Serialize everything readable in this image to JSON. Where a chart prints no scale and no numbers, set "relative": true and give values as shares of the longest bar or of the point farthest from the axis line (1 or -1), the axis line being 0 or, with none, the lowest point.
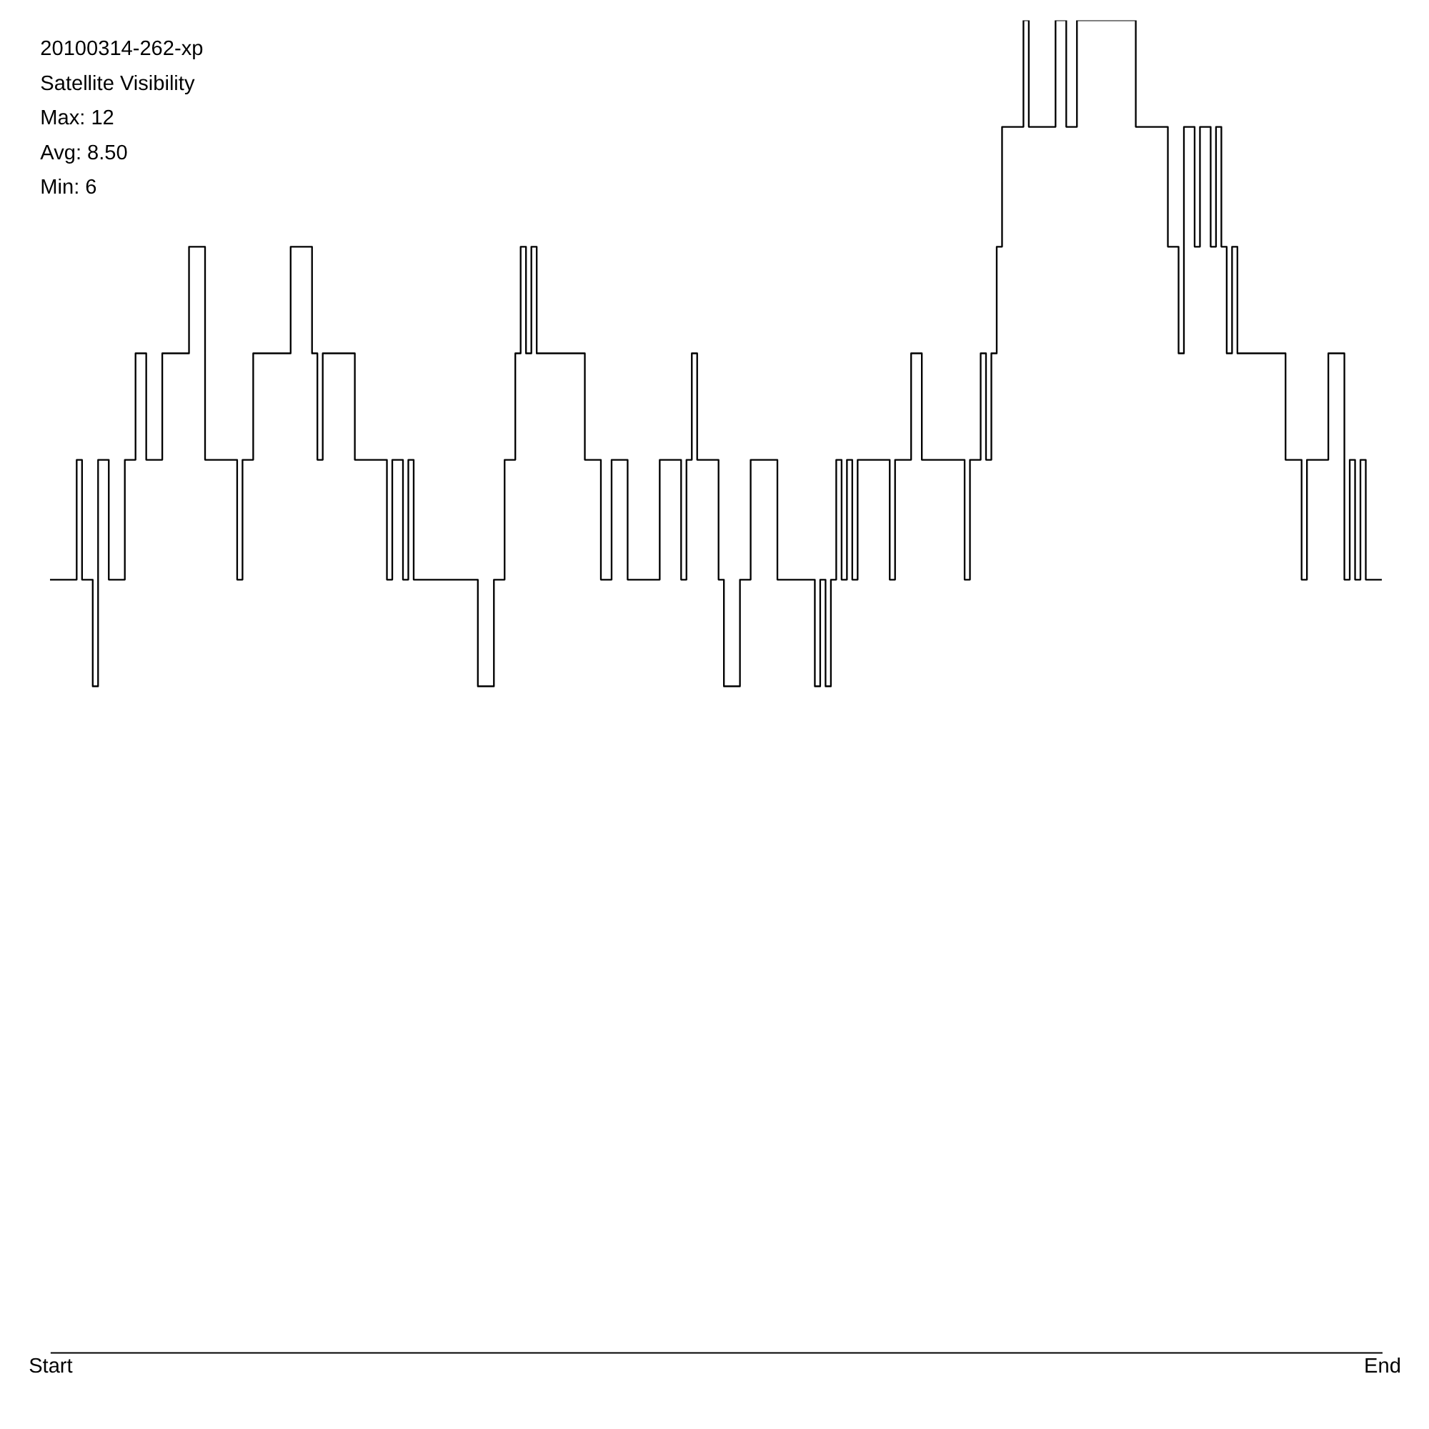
{
  "chart_data": {
    "type": "step",
    "title": "20100314-262-xp",
    "subtitle": "Satellite Visibility",
    "annotations": [
      "Max: 12",
      "Avg: 8.50",
      "Min: 6"
    ],
    "categories": [
      "Start",
      null,
      null,
      null,
      null,
      null,
      null,
      null,
      null,
      null,
      null,
      null,
      null,
      null,
      null,
      null,
      null,
      null,
      null,
      null,
      null,
      null,
      null,
      null,
      null,
      null,
      null,
      null,
      null,
      null,
      null,
      null,
      null,
      null,
      null,
      null,
      null,
      null,
      null,
      null,
      null,
      null,
      null,
      null,
      null,
      null,
      null,
      null,
      null,
      null,
      null,
      null,
      null,
      null,
      null,
      null,
      null,
      null,
      null,
      null,
      null,
      null,
      null,
      null,
      null,
      null,
      null,
      null,
      null,
      null,
      null,
      null,
      null,
      null,
      null,
      null,
      null,
      null,
      null,
      null,
      null,
      null,
      null,
      null,
      null,
      null,
      null,
      null,
      null,
      null,
      null,
      null,
      null,
      null,
      null,
      null,
      null,
      null,
      null,
      null,
      null,
      null,
      null,
      null,
      null,
      null,
      null,
      null,
      null,
      null,
      null,
      null,
      null,
      null,
      null,
      null,
      null,
      null,
      null,
      null,
      null,
      null,
      null,
      null,
      null,
      null,
      null,
      null,
      null,
      null,
      null,
      null,
      null,
      null,
      null,
      null,
      null,
      null,
      null,
      null,
      null,
      null,
      null,
      null,
      null,
      null,
      null,
      null,
      null,
      null,
      null,
      null,
      null,
      null,
      null,
      null,
      null,
      null,
      null,
      null,
      null,
      null,
      null,
      null,
      null,
      null,
      null,
      null,
      null,
      null,
      null,
      null,
      null,
      null,
      null,
      null,
      null,
      null,
      null,
      null,
      null,
      null,
      null,
      null,
      null,
      null,
      null,
      null,
      null,
      null,
      null,
      null,
      null,
      null,
      null,
      null,
      null,
      null,
      null,
      null,
      null,
      null,
      null,
      null,
      null,
      null,
      null,
      null,
      null,
      null,
      null,
      null,
      null,
      null,
      null,
      null,
      null,
      null,
      null,
      null,
      null,
      null,
      null,
      null,
      null,
      null,
      null,
      null,
      null,
      null,
      null,
      null,
      null,
      null,
      null,
      null,
      null,
      null,
      null,
      null,
      null,
      null,
      null,
      null,
      null,
      null,
      null,
      null,
      null,
      "End"
    ],
    "values": [
      0.58,
      0.58,
      0.58,
      0.58,
      0.58,
      0.67,
      0.58,
      0.58,
      0.5,
      0.67,
      0.67,
      0.58,
      0.58,
      0.58,
      0.67,
      0.67,
      0.75,
      0.75,
      0.67,
      0.67,
      0.67,
      0.75,
      0.75,
      0.75,
      0.75,
      0.75,
      0.83,
      0.83,
      0.83,
      0.67,
      0.67,
      0.67,
      0.67,
      0.67,
      0.67,
      0.58,
      0.67,
      0.67,
      0.75,
      0.75,
      0.75,
      0.75,
      0.75,
      0.75,
      0.75,
      0.83,
      0.83,
      0.83,
      0.83,
      0.75,
      0.67,
      0.75,
      0.75,
      0.75,
      0.75,
      0.75,
      0.75,
      0.67,
      0.67,
      0.67,
      0.67,
      0.67,
      0.67,
      0.58,
      0.67,
      0.67,
      0.58,
      0.67,
      0.58,
      0.58,
      0.58,
      0.58,
      0.58,
      0.58,
      0.58,
      0.58,
      0.58,
      0.58,
      0.58,
      0.58,
      0.5,
      0.5,
      0.5,
      0.58,
      0.58,
      0.67,
      0.67,
      0.75,
      0.83,
      0.75,
      0.83,
      0.75,
      0.75,
      0.75,
      0.75,
      0.75,
      0.75,
      0.75,
      0.75,
      0.75,
      0.67,
      0.67,
      0.67,
      0.58,
      0.58,
      0.67,
      0.67,
      0.67,
      0.58,
      0.58,
      0.58,
      0.58,
      0.58,
      0.58,
      0.67,
      0.67,
      0.67,
      0.67,
      0.58,
      0.67,
      0.75,
      0.67,
      0.67,
      0.67,
      0.67,
      0.58,
      0.5,
      0.5,
      0.5,
      0.58,
      0.58,
      0.67,
      0.67,
      0.67,
      0.67,
      0.67,
      0.58,
      0.58,
      0.58,
      0.58,
      0.58,
      0.58,
      0.58,
      0.5,
      0.58,
      0.5,
      0.58,
      0.67,
      0.58,
      0.67,
      0.58,
      0.67,
      0.67,
      0.67,
      0.67,
      0.67,
      0.67,
      0.58,
      0.67,
      0.67,
      0.67,
      0.75,
      0.75,
      0.67,
      0.67,
      0.67,
      0.67,
      0.67,
      0.67,
      0.67,
      0.67,
      0.58,
      0.67,
      0.67,
      0.75,
      0.67,
      0.75,
      0.83,
      0.92,
      0.92,
      0.92,
      0.92,
      1,
      0.92,
      0.92,
      0.92,
      0.92,
      0.92,
      1,
      1,
      0.92,
      0.92,
      1,
      1,
      1,
      1,
      1,
      1,
      1,
      1,
      1,
      1,
      1,
      0.92,
      0.92,
      0.92,
      0.92,
      0.92,
      0.92,
      0.83,
      0.83,
      0.75,
      0.92,
      0.92,
      0.83,
      0.92,
      0.92,
      0.83,
      0.92,
      0.83,
      0.75,
      0.83,
      0.75,
      0.75,
      0.75,
      0.75,
      0.75,
      0.75,
      0.75,
      0.75,
      0.75,
      0.67,
      0.67,
      0.67,
      0.58,
      0.67,
      0.67,
      0.67,
      0.67,
      0.75,
      0.75,
      0.75,
      0.58,
      0.67,
      0.58,
      0.67,
      0.58,
      0.58,
      0.58,
      0.58
    ],
    "relative": true,
    "color": "#000000"
  }
}
